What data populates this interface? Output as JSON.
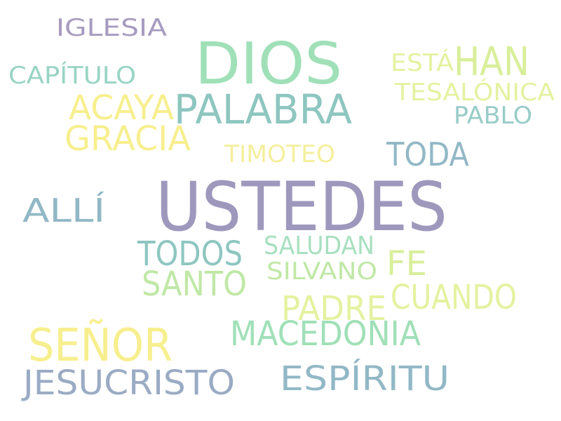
{
  "words": [
    {
      "id": "ustedes",
      "text": "USTEDES",
      "color": "#9e98bd"
    },
    {
      "id": "dios",
      "text": "DIOS",
      "color": "#a0e0b8"
    },
    {
      "id": "palabra",
      "text": "PALABRA",
      "color": "#8ec6c0"
    },
    {
      "id": "senor",
      "text": "SEÑOR",
      "color": "#f7ef8e"
    },
    {
      "id": "jesucristo",
      "text": "JESUCRISTO",
      "color": "#9aabc4"
    },
    {
      "id": "han",
      "text": "HAN",
      "color": "#d9ee9a"
    },
    {
      "id": "iglesia",
      "text": "IGLESIA",
      "color": "#a79cc0"
    },
    {
      "id": "capitulo",
      "text": "CAPÍTULO",
      "color": "#98d4c4"
    },
    {
      "id": "esta",
      "text": "ESTÁ",
      "color": "#e4f2a0"
    },
    {
      "id": "tesalonica",
      "text": "TESALÓNICA",
      "color": "#e4f2a0"
    },
    {
      "id": "acaya",
      "text": "ACAYA",
      "color": "#f7ef8e"
    },
    {
      "id": "gracia",
      "text": "GRACIA",
      "color": "#f7ef8e"
    },
    {
      "id": "pablo",
      "text": "PABLO",
      "color": "#98ccc8"
    },
    {
      "id": "timoteo",
      "text": "TIMOTEO",
      "color": "#f5ef9c"
    },
    {
      "id": "toda",
      "text": "TODA",
      "color": "#92b8c6"
    },
    {
      "id": "alli",
      "text": "ALLÍ",
      "color": "#92b8c6"
    },
    {
      "id": "todos",
      "text": "TODOS",
      "color": "#8ec6c0"
    },
    {
      "id": "saludan",
      "text": "SALUDAN",
      "color": "#a8e0c0"
    },
    {
      "id": "fe",
      "text": "FE",
      "color": "#d9ee9a"
    },
    {
      "id": "santo",
      "text": "SANTO",
      "color": "#c0e8a6"
    },
    {
      "id": "silvano",
      "text": "SILVANO",
      "color": "#c0e8a6"
    },
    {
      "id": "cuando",
      "text": "CUANDO",
      "color": "#e4f2a0"
    },
    {
      "id": "padre",
      "text": "PADRE",
      "color": "#e4f2a0"
    },
    {
      "id": "macedonia",
      "text": "MACEDONIA",
      "color": "#a0e0b8"
    },
    {
      "id": "espiritu",
      "text": "ESPÍRITU",
      "color": "#92b8c6"
    }
  ]
}
